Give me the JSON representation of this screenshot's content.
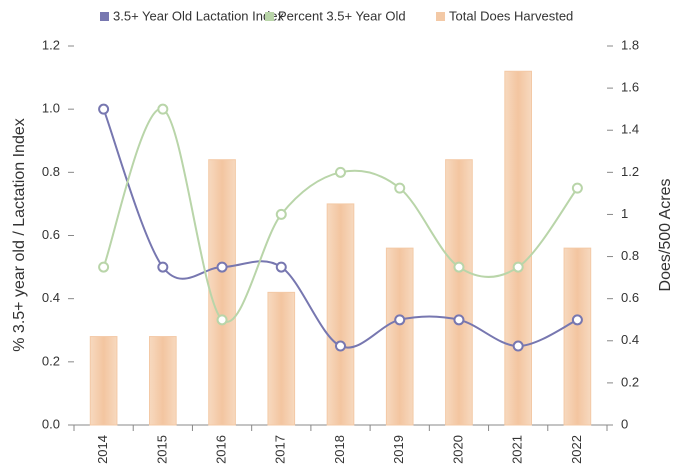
{
  "chart_data": {
    "type": "combo",
    "categories": [
      "2014",
      "2015",
      "2016",
      "2017",
      "2018",
      "2019",
      "2020",
      "2021",
      "2022"
    ],
    "series": [
      {
        "name": "3.5+ Year Old Lactation Index",
        "type": "line",
        "color": "#7777b0",
        "values": [
          1.0,
          0.5,
          0.5,
          0.5,
          0.25,
          0.333,
          0.333,
          0.25,
          0.333
        ]
      },
      {
        "name": "Percent 3.5+ Year Old",
        "type": "line",
        "color": "#b9d5a9",
        "values": [
          0.5,
          1.0,
          0.333,
          0.667,
          0.8,
          0.75,
          0.5,
          0.5,
          0.75
        ]
      },
      {
        "name": "Total Does Harvested",
        "type": "bar",
        "color": "#f3c9a6",
        "axis": "y2",
        "values": [
          0.42,
          0.42,
          1.26,
          0.63,
          1.05,
          0.84,
          1.26,
          1.68,
          0.84
        ]
      }
    ],
    "ylabel": "% 3.5+ year old / Lactation Index",
    "y2label": "Does/500 Acres",
    "ylim": [
      0,
      1.2
    ],
    "yticks": [
      {
        "value": 0,
        "label": "0.0"
      },
      0.2,
      0.4,
      0.6,
      0.8,
      {
        "value": 1,
        "label": "1.0"
      },
      1.2
    ],
    "y2lim": [
      0,
      1.8
    ],
    "y2ticks": [
      0,
      0.2,
      0.4,
      0.6,
      0.8,
      1,
      1.2,
      1.4,
      1.6,
      1.8
    ],
    "legend": "top"
  }
}
